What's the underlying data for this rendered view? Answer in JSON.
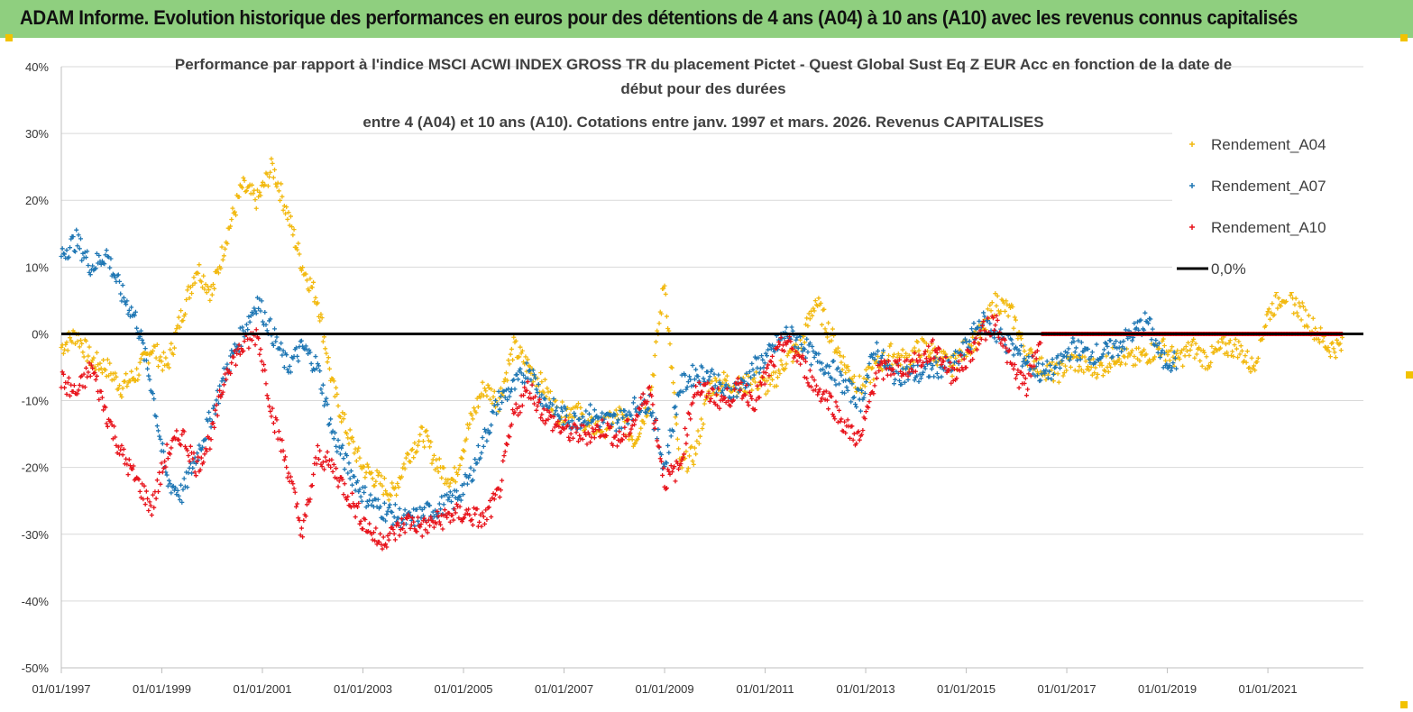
{
  "header": {
    "title": "ADAM Informe. Evolution historique des performances en euros pour des détentions de 4 ans (A04) à 10 ans (A10) avec les revenus connus capitalisés"
  },
  "chart_data": {
    "type": "scatter",
    "title_lines": [
      "Performance par rapport à l'indice MSCI ACWI INDEX GROSS TR  du placement Pictet - Quest Global Sust Eq Z EUR Acc en fonction de la date de",
      "début pour des durées",
      "entre 4 (A04) et 10 ans (A10). Cotations entre janv. 1997 et mars. 2026. Revenus CAPITALISES"
    ],
    "x_tick_labels": [
      "01/01/1997",
      "01/01/1999",
      "01/01/2001",
      "01/01/2003",
      "01/01/2005",
      "01/01/2007",
      "01/01/2009",
      "01/01/2011",
      "01/01/2013",
      "01/01/2015",
      "01/01/2017",
      "01/01/2019",
      "01/01/2021"
    ],
    "x_ticks": [
      1997,
      1999,
      2001,
      2003,
      2005,
      2007,
      2009,
      2011,
      2013,
      2015,
      2017,
      2019,
      2021
    ],
    "xlim": [
      1997,
      2022.9
    ],
    "y_ticks": [
      40,
      30,
      20,
      10,
      0,
      -10,
      -20,
      -30,
      -40,
      -50
    ],
    "y_tick_labels": [
      "40%",
      "30%",
      "20%",
      "10%",
      "0%",
      "-10%",
      "-20%",
      "-30%",
      "-40%",
      "-50%"
    ],
    "ylim": [
      -50,
      40
    ],
    "grid": "horizontal",
    "legend_position": "top-right",
    "series": [
      {
        "name": "Rendement_A04",
        "color": "#f2b90f",
        "x": [
          1997.0,
          1997.3,
          1997.6,
          1997.9,
          1998.2,
          1998.5,
          1998.8,
          1999.1,
          1999.4,
          1999.7,
          2000.0,
          2000.3,
          2000.6,
          2000.9,
          2001.2,
          2001.5,
          2001.8,
          2002.1,
          2002.4,
          2002.7,
          2003.0,
          2003.3,
          2003.6,
          2003.9,
          2004.2,
          2004.5,
          2004.8,
          2005.1,
          2005.4,
          2005.7,
          2006.0,
          2006.3,
          2006.6,
          2006.9,
          2007.2,
          2007.5,
          2007.8,
          2008.1,
          2008.4,
          2008.7,
          2009.0,
          2009.3,
          2009.6,
          2009.9,
          2010.2,
          2010.5,
          2010.8,
          2011.1,
          2011.4,
          2011.7,
          2012.0,
          2012.3,
          2012.6,
          2012.9,
          2013.2,
          2013.5,
          2013.8,
          2014.1,
          2014.4,
          2014.7,
          2015.0,
          2015.3,
          2015.6,
          2015.9,
          2016.2,
          2016.5,
          2016.8,
          2017.1,
          2017.4,
          2017.7,
          2018.0,
          2018.3,
          2018.6,
          2018.9,
          2019.2,
          2019.5,
          2019.8,
          2020.1,
          2020.4,
          2020.7,
          2021.0,
          2021.3,
          2021.6,
          2021.9,
          2022.2
        ],
        "values": [
          -2,
          0,
          -4,
          -5,
          -8,
          -6,
          -2,
          -5,
          3,
          10,
          6,
          15,
          22,
          20,
          25,
          18,
          10,
          5,
          -8,
          -15,
          -20,
          -22,
          -24,
          -18,
          -15,
          -20,
          -22,
          -14,
          -8,
          -10,
          -2,
          -5,
          -8,
          -12,
          -11,
          -14,
          -14,
          -12,
          -16,
          -10,
          8,
          -20,
          -18,
          -8,
          -7,
          -8,
          -7,
          -8,
          -4,
          -2,
          5,
          0,
          -5,
          -8,
          -5,
          -3,
          -4,
          -2,
          -3,
          -5,
          -2,
          0,
          5,
          3,
          -3,
          -5,
          -6,
          -4,
          -5,
          -5,
          -3,
          -4,
          -3,
          -2,
          -4,
          -2,
          -4,
          -2,
          -2,
          -5,
          3,
          6,
          4,
          1,
          -2
        ]
      },
      {
        "name": "Rendement_A07",
        "color": "#1f77b4",
        "x": [
          1997.0,
          1997.3,
          1997.6,
          1997.9,
          1998.2,
          1998.5,
          1998.8,
          1999.1,
          1999.4,
          1999.7,
          2000.0,
          2000.3,
          2000.6,
          2000.9,
          2001.2,
          2001.5,
          2001.8,
          2002.1,
          2002.4,
          2002.7,
          2003.0,
          2003.3,
          2003.6,
          2003.9,
          2004.2,
          2004.5,
          2004.8,
          2005.1,
          2005.4,
          2005.7,
          2006.0,
          2006.3,
          2006.6,
          2006.9,
          2007.2,
          2007.5,
          2007.8,
          2008.1,
          2008.4,
          2008.7,
          2009.0,
          2009.3,
          2009.6,
          2009.9,
          2010.2,
          2010.5,
          2010.8,
          2011.1,
          2011.4,
          2011.7,
          2012.0,
          2012.3,
          2012.6,
          2012.9,
          2013.2,
          2013.5,
          2013.8,
          2014.1,
          2014.4,
          2014.7,
          2015.0,
          2015.3,
          2015.6,
          2015.9,
          2016.2,
          2016.5,
          2016.8,
          2017.1,
          2017.4,
          2017.7,
          2018.0,
          2018.3,
          2018.6,
          2018.9
        ],
        "values": [
          12,
          14,
          10,
          12,
          6,
          2,
          -8,
          -22,
          -24,
          -18,
          -12,
          -5,
          0,
          5,
          0,
          -5,
          -2,
          -5,
          -15,
          -20,
          -24,
          -26,
          -27,
          -28,
          -27,
          -26,
          -25,
          -22,
          -16,
          -10,
          -8,
          -5,
          -10,
          -12,
          -13,
          -12,
          -13,
          -13,
          -11,
          -10,
          -20,
          -8,
          -6,
          -6,
          -9,
          -8,
          -5,
          -3,
          0,
          -1,
          -4,
          -5,
          -8,
          -10,
          -2,
          -6,
          -6,
          -6,
          -5,
          -5,
          -2,
          2,
          0,
          -2,
          -4,
          -6,
          -5,
          -2,
          -3,
          -3,
          -2,
          0,
          2,
          -4
        ]
      },
      {
        "name": "Rendement_A10",
        "color": "#e8141c",
        "x": [
          1997.0,
          1997.3,
          1997.6,
          1997.9,
          1998.2,
          1998.5,
          1998.8,
          1999.1,
          1999.4,
          1999.7,
          2000.0,
          2000.3,
          2000.6,
          2000.9,
          2001.2,
          2001.5,
          2001.8,
          2002.1,
          2002.4,
          2002.7,
          2003.0,
          2003.3,
          2003.6,
          2003.9,
          2004.2,
          2004.5,
          2004.8,
          2005.1,
          2005.4,
          2005.7,
          2006.0,
          2006.3,
          2006.6,
          2006.9,
          2007.2,
          2007.5,
          2007.8,
          2008.1,
          2008.4,
          2008.7,
          2009.0,
          2009.3,
          2009.6,
          2009.9,
          2010.2,
          2010.5,
          2010.8,
          2011.1,
          2011.4,
          2011.7,
          2012.0,
          2012.3,
          2012.6,
          2012.9,
          2013.2,
          2013.5,
          2013.8,
          2014.1,
          2014.4,
          2014.7,
          2015.0,
          2015.3,
          2015.6,
          2015.9,
          2016.2,
          2016.5,
          2016.8,
          2017.1,
          2017.4,
          2017.7,
          2018.0,
          2018.3,
          2018.6,
          2018.9,
          2019.2,
          2019.5,
          2019.8,
          2020.1,
          2020.4,
          2020.7,
          2021.0,
          2021.3,
          2021.6,
          2021.9,
          2022.2
        ],
        "values": [
          -7,
          -9,
          -5,
          -12,
          -18,
          -22,
          -26,
          -18,
          -15,
          -20,
          -15,
          -5,
          -2,
          0,
          -12,
          -20,
          -30,
          -18,
          -20,
          -24,
          -28,
          -31,
          -30,
          -28,
          -29,
          -28,
          -27,
          -27,
          -28,
          -24,
          -12,
          -8,
          -12,
          -14,
          -15,
          -15,
          -14,
          -16,
          -13,
          -8,
          -22,
          -20,
          -8,
          -9,
          -10,
          -8,
          -10,
          -5,
          -1,
          -4,
          -8,
          -10,
          -14,
          -16,
          -6,
          -5,
          -5,
          -4,
          -2,
          -6,
          -4,
          0,
          2,
          -5,
          -8,
          0,
          0,
          0,
          0,
          0,
          0,
          0,
          0,
          0,
          0,
          0,
          0,
          0,
          0,
          0,
          0,
          0,
          0,
          0,
          0
        ]
      },
      {
        "name": "0,0%",
        "color": "#000000",
        "x": [
          1997,
          2022.9
        ],
        "values": [
          0,
          0
        ]
      }
    ]
  }
}
